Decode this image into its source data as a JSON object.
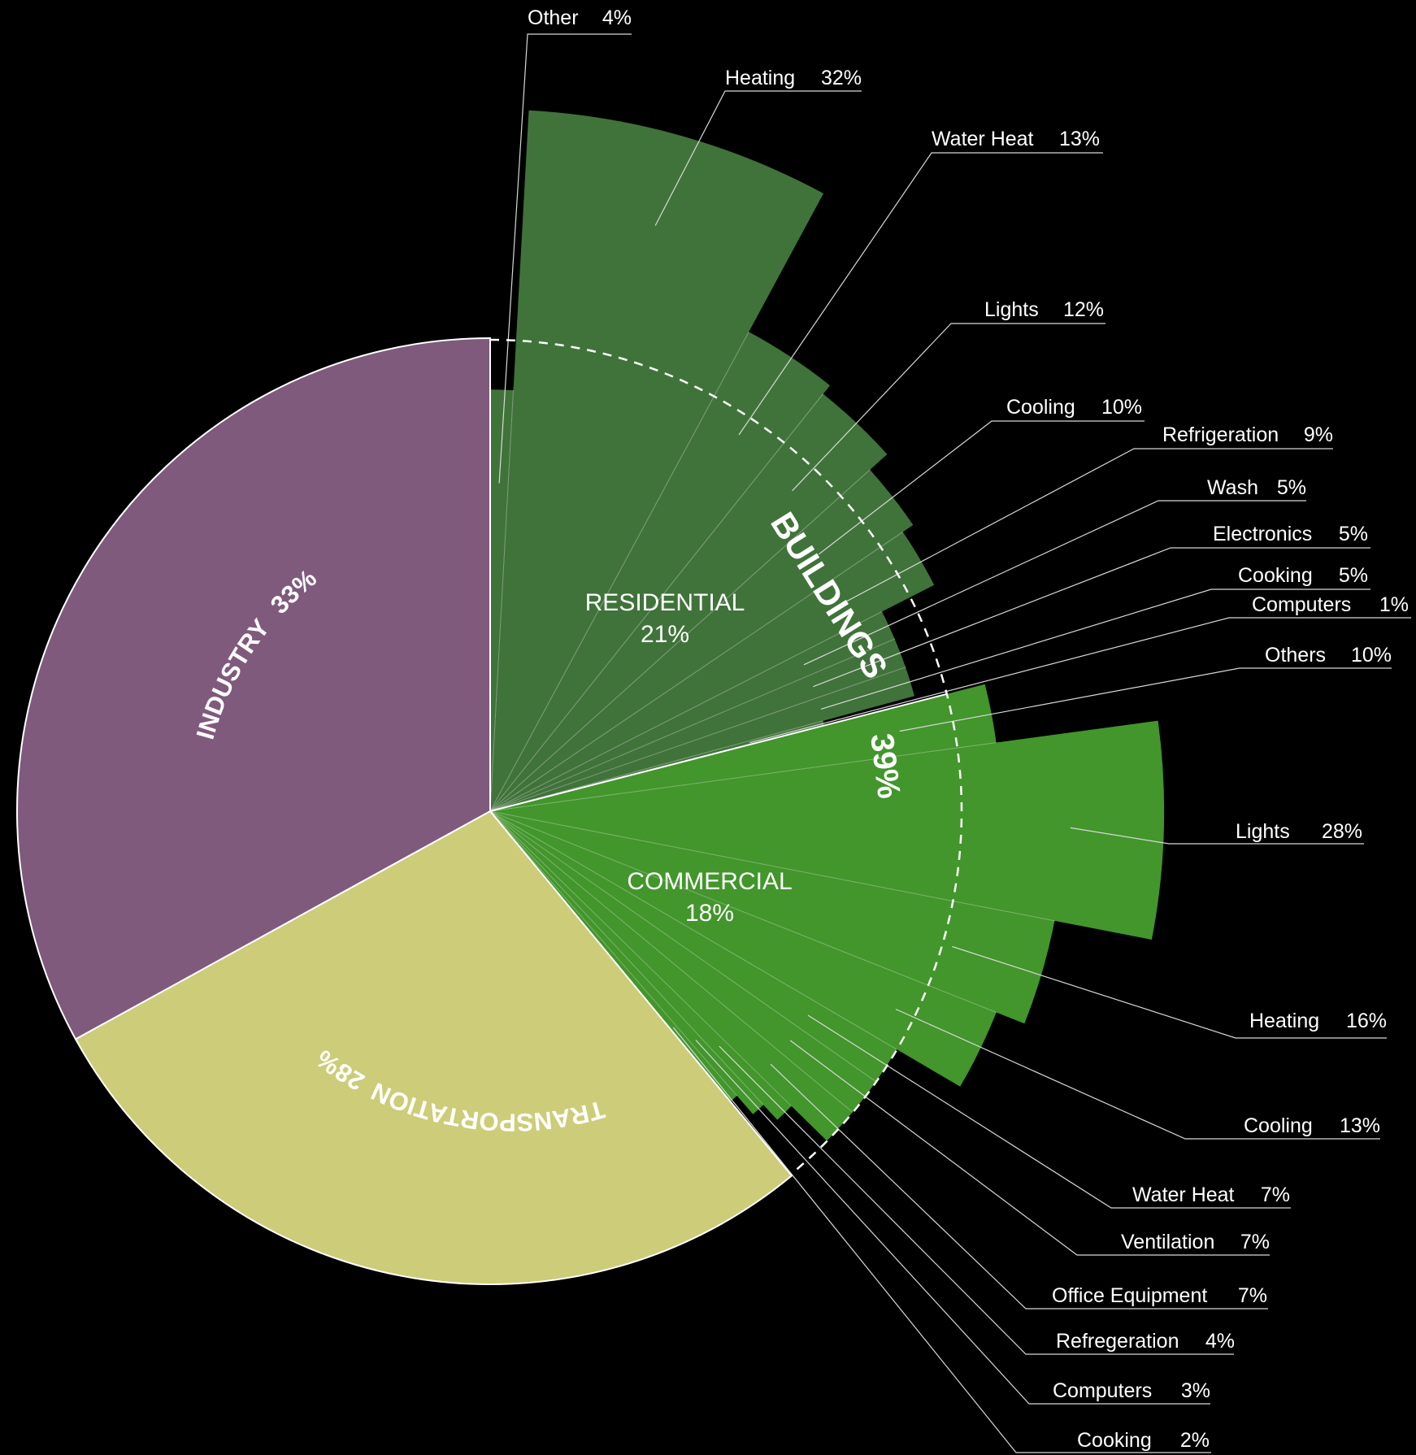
{
  "colors": {
    "background": "#000000",
    "industry": "#7f5a7c",
    "transportation": "#cdcc78",
    "residential": "#40733a",
    "commercial": "#42962b",
    "divider": "#ffffff"
  },
  "chart_data": {
    "type": "pie",
    "title": "",
    "slices": [
      {
        "key": "industry",
        "label": "INDUSTRY",
        "value_label": "33%",
        "value": 33
      },
      {
        "key": "transportation",
        "label": "TRANSPORTATION",
        "value_label": "28%",
        "value": 28
      },
      {
        "key": "buildings",
        "label": "BUILDINGS",
        "value_label": "39%",
        "value": 39
      }
    ],
    "buildings": {
      "label": "BUILDINGS",
      "value_label": "39%",
      "segments": [
        {
          "key": "residential",
          "label": "RESIDENTIAL",
          "value_label": "21%",
          "value": 21,
          "items": [
            {
              "label": "Other",
              "value": 4,
              "value_label": "4%"
            },
            {
              "label": "Heating",
              "value": 32,
              "value_label": "32%"
            },
            {
              "label": "Water Heat",
              "value": 13,
              "value_label": "13%"
            },
            {
              "label": "Lights",
              "value": 12,
              "value_label": "12%"
            },
            {
              "label": "Cooling",
              "value": 10,
              "value_label": "10%"
            },
            {
              "label": "Refrigeration",
              "value": 9,
              "value_label": "9%"
            },
            {
              "label": "Wash",
              "value": 5,
              "value_label": "5%"
            },
            {
              "label": "Electronics",
              "value": 5,
              "value_label": "5%"
            },
            {
              "label": "Cooking",
              "value": 5,
              "value_label": "5%"
            },
            {
              "label": "Computers",
              "value": 1,
              "value_label": "1%"
            }
          ]
        },
        {
          "key": "commercial",
          "label": "COMMERCIAL",
          "value_label": "18%",
          "value": 18,
          "items": [
            {
              "label": "Others",
              "value": 10,
              "value_label": "10%"
            },
            {
              "label": "Lights",
              "value": 28,
              "value_label": "28%"
            },
            {
              "label": "Heating",
              "value": 16,
              "value_label": "16%"
            },
            {
              "label": "Cooling",
              "value": 13,
              "value_label": "13%"
            },
            {
              "label": "Water Heat",
              "value": 7,
              "value_label": "7%"
            },
            {
              "label": "Ventilation",
              "value": 7,
              "value_label": "7%"
            },
            {
              "label": "Office Equipment",
              "value": 7,
              "value_label": "7%"
            },
            {
              "label": "Refregeration",
              "value": 4,
              "value_label": "4%"
            },
            {
              "label": "Computers",
              "value": 3,
              "value_label": "3%"
            },
            {
              "label": "Cooking",
              "value": 2,
              "value_label": "2%"
            }
          ]
        }
      ]
    }
  }
}
